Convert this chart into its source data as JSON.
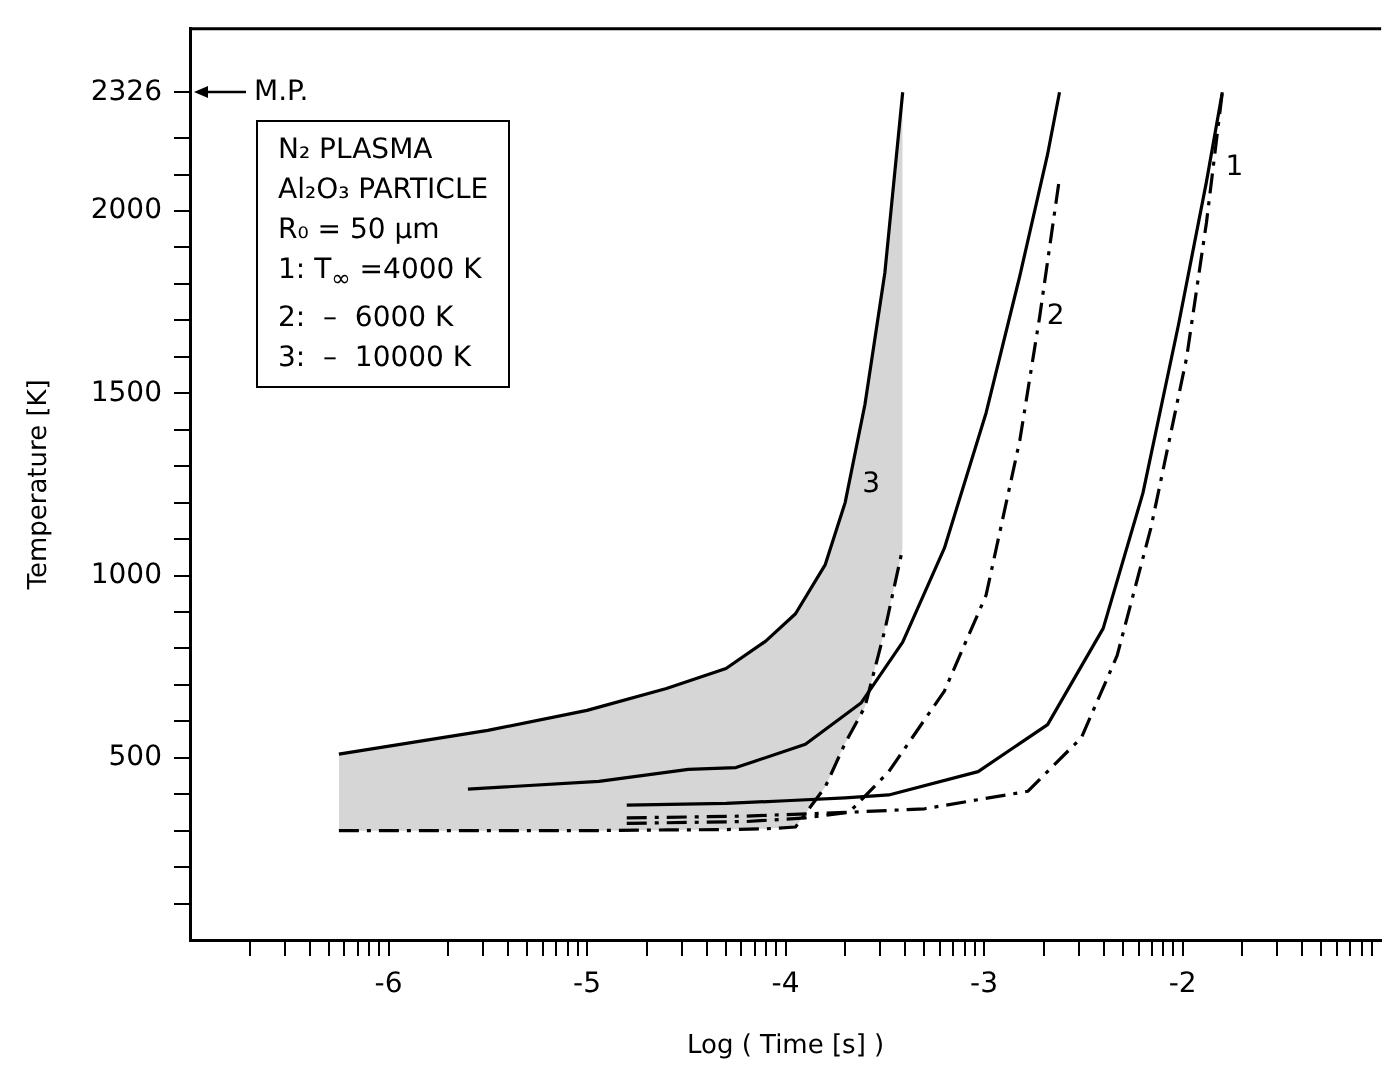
{
  "chart_data": {
    "type": "line",
    "xlabel": "Log ( Time [s] )",
    "ylabel": "Temperature [K]",
    "xlim": [
      -7,
      -1
    ],
    "ylim": [
      0,
      2500
    ],
    "xticks": [
      {
        "value": -6.699,
        "label": null
      },
      {
        "value": -6.523,
        "label": null
      },
      {
        "value": -6.398,
        "label": null
      },
      {
        "value": -6.301,
        "label": null
      },
      {
        "value": -6.222,
        "label": null
      },
      {
        "value": -6.155,
        "label": null
      },
      {
        "value": -6.097,
        "label": null
      },
      {
        "value": -6.046,
        "label": null
      },
      -6,
      {
        "value": -5.699,
        "label": null
      },
      {
        "value": -5.523,
        "label": null
      },
      {
        "value": -5.398,
        "label": null
      },
      {
        "value": -5.301,
        "label": null
      },
      {
        "value": -5.222,
        "label": null
      },
      {
        "value": -5.155,
        "label": null
      },
      {
        "value": -5.097,
        "label": null
      },
      {
        "value": -5.046,
        "label": null
      },
      -5,
      {
        "value": -4.699,
        "label": null
      },
      {
        "value": -4.523,
        "label": null
      },
      {
        "value": -4.398,
        "label": null
      },
      {
        "value": -4.301,
        "label": null
      },
      {
        "value": -4.222,
        "label": null
      },
      {
        "value": -4.155,
        "label": null
      },
      {
        "value": -4.097,
        "label": null
      },
      {
        "value": -4.046,
        "label": null
      },
      -4,
      {
        "value": -3.699,
        "label": null
      },
      {
        "value": -3.523,
        "label": null
      },
      {
        "value": -3.398,
        "label": null
      },
      {
        "value": -3.301,
        "label": null
      },
      {
        "value": -3.222,
        "label": null
      },
      {
        "value": -3.155,
        "label": null
      },
      {
        "value": -3.097,
        "label": null
      },
      {
        "value": -3.046,
        "label": null
      },
      -3,
      {
        "value": -2.699,
        "label": null
      },
      {
        "value": -2.523,
        "label": null
      },
      {
        "value": -2.398,
        "label": null
      },
      {
        "value": -2.301,
        "label": null
      },
      {
        "value": -2.222,
        "label": null
      },
      {
        "value": -2.155,
        "label": null
      },
      {
        "value": -2.097,
        "label": null
      },
      {
        "value": -2.046,
        "label": null
      },
      -2,
      {
        "value": -1.699,
        "label": null
      },
      {
        "value": -1.523,
        "label": null
      },
      {
        "value": -1.398,
        "label": null
      },
      {
        "value": -1.301,
        "label": null
      },
      {
        "value": -1.222,
        "label": null
      },
      {
        "value": -1.155,
        "label": null
      },
      {
        "value": -1.097,
        "label": null
      },
      {
        "value": -1.046,
        "label": null
      }
    ],
    "yticks": [
      {
        "value": 100,
        "label": null
      },
      {
        "value": 200,
        "label": null
      },
      {
        "value": 300,
        "label": null
      },
      {
        "value": 400,
        "label": null
      },
      500,
      {
        "value": 600,
        "label": null
      },
      {
        "value": 700,
        "label": null
      },
      {
        "value": 800,
        "label": null
      },
      {
        "value": 900,
        "label": null
      },
      1000,
      {
        "value": 1100,
        "label": null
      },
      {
        "value": 1200,
        "label": null
      },
      {
        "value": 1300,
        "label": null
      },
      {
        "value": 1400,
        "label": null
      },
      1500,
      {
        "value": 1600,
        "label": null
      },
      {
        "value": 1700,
        "label": null
      },
      {
        "value": 1800,
        "label": null
      },
      {
        "value": 1900,
        "label": null
      },
      2000,
      {
        "value": 2100,
        "label": null
      },
      {
        "value": 2200,
        "label": null
      },
      2326
    ],
    "grid": false,
    "legend": false,
    "marker": "none",
    "series": [
      {
        "color": "#000000",
        "line_style": "solid",
        "x": [
          -4.8,
          -4.3,
          -4.0,
          -3.7,
          -3.48,
          -3.03,
          -2.68,
          -2.4,
          -2.2,
          -2.02,
          -1.88,
          -1.8
        ],
        "values": [
          370,
          375,
          382,
          390,
          398,
          462,
          591,
          855,
          1226,
          1690,
          2080,
          2326
        ]
      },
      {
        "color": "#000000",
        "line_style": "dashed",
        "x": [
          -4.8,
          -4.2,
          -3.7,
          -3.3,
          -2.78,
          -2.51,
          -2.33,
          -2.16,
          -1.98,
          -1.88,
          -1.8
        ],
        "values": [
          335,
          340,
          350,
          360,
          408,
          555,
          780,
          1130,
          1597,
          1968,
          2326
        ]
      },
      {
        "color": "#000000",
        "line_style": "solid",
        "x": [
          -5.6,
          -4.94,
          -4.49,
          -4.25,
          -3.9,
          -3.62,
          -3.41,
          -3.2,
          -2.99,
          -2.82,
          -2.68,
          -2.62
        ],
        "values": [
          414,
          435,
          468,
          473,
          537,
          650,
          817,
          1075,
          1446,
          1822,
          2156,
          2326
        ]
      },
      {
        "color": "#000000",
        "line_style": "dashed",
        "x": [
          -4.8,
          -4.2,
          -3.9,
          -3.68,
          -3.48,
          -3.2,
          -2.99,
          -2.82,
          -2.72,
          -2.62
        ],
        "values": [
          320,
          325,
          335,
          350,
          462,
          683,
          946,
          1371,
          1710,
          2091
        ]
      },
      {
        "color": "#000000",
        "line_style": "solid",
        "x": [
          -6.25,
          -5.5,
          -5,
          -4.6,
          -4.3,
          -4.1,
          -3.95,
          -3.8,
          -3.7,
          -3.6,
          -3.5,
          -3.41
        ],
        "values": [
          510,
          575,
          630,
          690,
          745,
          820,
          895,
          1030,
          1200,
          1470,
          1830,
          2326
        ],
        "lower": [
          300,
          300,
          300,
          302,
          303,
          305,
          310,
          420,
          540,
          640,
          850,
          1075
        ],
        "upper": [
          510,
          575,
          630,
          690,
          745,
          820,
          895,
          1030,
          1200,
          1470,
          1830,
          2326
        ]
      },
      {
        "color": "#000000",
        "line_style": "dashed",
        "x": [
          -6.25,
          -5.5,
          -5,
          -4.6,
          -4.3,
          -4.1,
          -3.95,
          -3.8,
          -3.7,
          -3.6,
          -3.5,
          -3.41
        ],
        "values": [
          300,
          300,
          300,
          302,
          303,
          305,
          310,
          420,
          540,
          640,
          850,
          1075
        ]
      }
    ],
    "ref_lines": [
      {
        "axis": "y",
        "value": 2326,
        "label": "M.P."
      }
    ],
    "annotations": [
      "N₂ PLASMA",
      "Al₂O₃ PARTICLE",
      "R₀ = 50 μm",
      "1: T$_{∞}$ =4000 K",
      "2:  –  6000 K",
      "3:  –  10000 K",
      {
        "text": "1",
        "x": -1.82,
        "y": 2120
      },
      {
        "text": "2",
        "x": -2.72,
        "y": 1710
      },
      {
        "text": "3",
        "x": -3.65,
        "y": 1250
      }
    ]
  }
}
